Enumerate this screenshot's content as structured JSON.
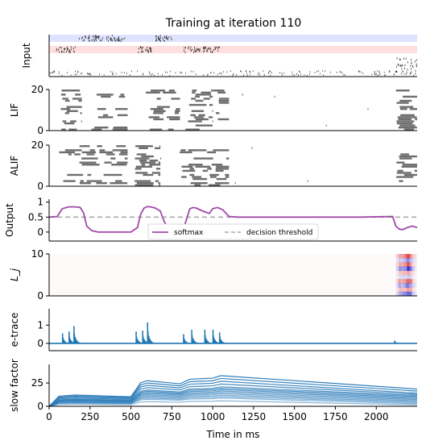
{
  "title": "Training at iteration 110",
  "colors": {
    "spike": "#6e6e6e",
    "input_dark": "#303030",
    "band_blue": "#dfe3ff",
    "band_red": "#ffdede",
    "softmax": "#a04aa8",
    "threshold": "#a9a9a9",
    "etrace": "#1f77b4",
    "slow": "#2b7bb9",
    "heat_pos": "#cc0000",
    "heat_neg": "#0000cc"
  },
  "legend": {
    "softmax": "softmax",
    "threshold": "decision threshold"
  },
  "chart_data": [
    {
      "panel": "input",
      "type": "heatmap",
      "ylabel": "Input",
      "xlim": [
        0,
        2250
      ],
      "bands": [
        {
          "color": "blue",
          "rows": [
            0,
            10
          ]
        },
        {
          "color": "red",
          "rows": [
            20,
            30
          ]
        }
      ],
      "spike_bursts": [
        {
          "group": "blue",
          "t_start": 180,
          "t_end": 330
        },
        {
          "group": "blue",
          "t_start": 350,
          "t_end": 460
        },
        {
          "group": "blue",
          "t_start": 640,
          "t_end": 750
        },
        {
          "group": "red",
          "t_start": 40,
          "t_end": 160
        },
        {
          "group": "red",
          "t_start": 540,
          "t_end": 640
        },
        {
          "group": "red",
          "t_start": 820,
          "t_end": 920
        },
        {
          "group": "red",
          "t_start": 940,
          "t_end": 1050
        },
        {
          "group": "cue",
          "t_start": 2100,
          "t_end": 2250
        }
      ],
      "background_noise": true
    },
    {
      "panel": "lif",
      "type": "scatter",
      "ylabel": "LIF",
      "ylim": [
        0,
        20
      ],
      "yticks": [
        0,
        20
      ],
      "active_segments": [
        {
          "t_start": 60,
          "t_end": 200
        },
        {
          "t_start": 240,
          "t_end": 480
        },
        {
          "t_start": 580,
          "t_end": 800
        },
        {
          "t_start": 830,
          "t_end": 1000
        },
        {
          "t_start": 1000,
          "t_end": 1100
        },
        {
          "t_start": 2120,
          "t_end": 2250
        }
      ]
    },
    {
      "panel": "alif",
      "type": "scatter",
      "ylabel": "ALIF",
      "ylim": [
        0,
        20
      ],
      "yticks": [
        0,
        20
      ],
      "active_segments": [
        {
          "t_start": 60,
          "t_end": 480
        },
        {
          "t_start": 520,
          "t_end": 680
        },
        {
          "t_start": 760,
          "t_end": 1100
        },
        {
          "t_start": 2120,
          "t_end": 2250
        }
      ]
    },
    {
      "panel": "output",
      "type": "line",
      "ylabel": "Output",
      "ylim": [
        -0.3,
        1.1
      ],
      "yticks": [
        0.0,
        0.5,
        1.0
      ],
      "series": [
        {
          "name": "softmax",
          "x": [
            0,
            50,
            80,
            120,
            160,
            190,
            210,
            230,
            260,
            300,
            400,
            500,
            540,
            560,
            580,
            600,
            620,
            650,
            680,
            700,
            730,
            760,
            800,
            830,
            860,
            880,
            900,
            940,
            980,
            1000,
            1030,
            1060,
            1100,
            1150,
            1300,
            1600,
            1900,
            2100,
            2120,
            2140,
            2160,
            2190,
            2220,
            2250
          ],
          "y": [
            0.5,
            0.52,
            0.78,
            0.84,
            0.84,
            0.82,
            0.65,
            0.2,
            0.05,
            0.0,
            0.0,
            0.0,
            0.15,
            0.6,
            0.8,
            0.85,
            0.84,
            0.8,
            0.7,
            0.4,
            0.05,
            0.0,
            0.0,
            0.25,
            0.78,
            0.82,
            0.8,
            0.7,
            0.62,
            0.78,
            0.82,
            0.75,
            0.52,
            0.5,
            0.5,
            0.5,
            0.5,
            0.52,
            0.2,
            0.1,
            0.08,
            0.15,
            0.2,
            0.15
          ]
        },
        {
          "name": "decision threshold",
          "x": [
            0,
            2250
          ],
          "y": [
            0.5,
            0.5
          ]
        }
      ],
      "legend_position": "lower-center"
    },
    {
      "panel": "lj",
      "type": "heatmap",
      "ylabel": "L_j",
      "ylim": [
        0,
        10
      ],
      "yticks": [
        0,
        10
      ],
      "active_region": {
        "t_start": 2100,
        "t_end": 2250
      }
    },
    {
      "panel": "etrace",
      "type": "area",
      "ylabel": "e-trace",
      "ylim": [
        -0.4,
        1.9
      ],
      "yticks": [
        0,
        1
      ],
      "bursts": [
        {
          "t": 80,
          "peak": 0.55
        },
        {
          "t": 120,
          "peak": 0.65
        },
        {
          "t": 150,
          "peak": 0.95
        },
        {
          "t": 530,
          "peak": 0.65
        },
        {
          "t": 570,
          "peak": 0.7
        },
        {
          "t": 600,
          "peak": 1.15
        },
        {
          "t": 820,
          "peak": 0.5
        },
        {
          "t": 870,
          "peak": 0.75
        },
        {
          "t": 950,
          "peak": 0.75
        },
        {
          "t": 1000,
          "peak": 0.75
        },
        {
          "t": 1040,
          "peak": 0.6
        },
        {
          "t": 2110,
          "peak": 0.15
        }
      ]
    },
    {
      "panel": "slow",
      "type": "line",
      "ylabel": "slow factor",
      "xlabel": "Time in ms",
      "xlim": [
        0,
        2250
      ],
      "ylim": [
        0,
        45
      ],
      "yticks": [
        0,
        25
      ],
      "xticks": [
        0,
        250,
        500,
        750,
        1000,
        1250,
        1500,
        1750,
        2000
      ],
      "series_count": 14,
      "profile_points_t": [
        0,
        60,
        160,
        500,
        560,
        600,
        800,
        860,
        1000,
        1050,
        2250
      ],
      "series_base_levels": [
        4,
        6,
        7,
        8,
        9,
        10,
        11,
        12,
        13,
        14,
        16,
        18,
        20,
        22
      ],
      "final_values": [
        1,
        2,
        3,
        4,
        5,
        6,
        7,
        8,
        9,
        10,
        11,
        12,
        14,
        16
      ]
    }
  ]
}
